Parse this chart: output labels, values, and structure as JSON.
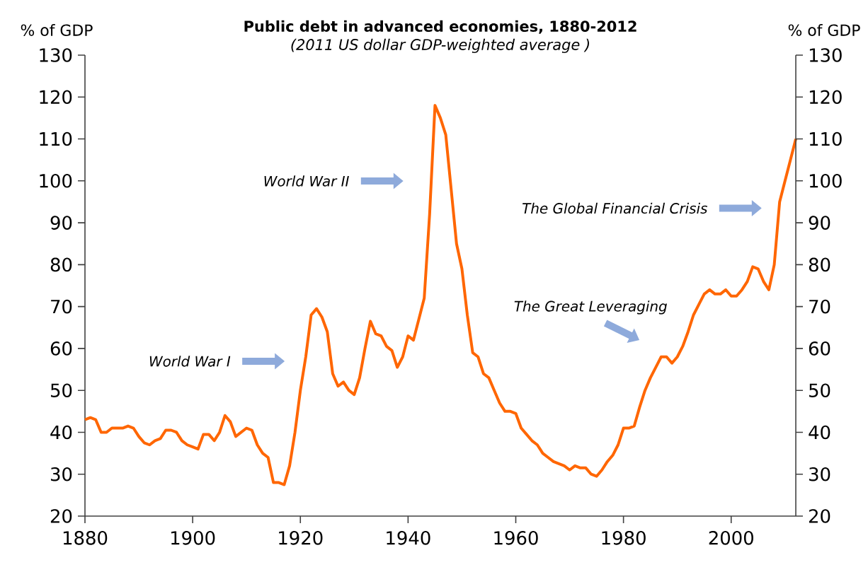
{
  "chart_data": {
    "type": "line",
    "title": "Public debt in advanced economies, 1880-2012",
    "subtitle": "(2011 US dollar GDP-weighted average )",
    "ylabel": "% of GDP",
    "y2label": "% of GDP",
    "x": [
      1880,
      1881,
      1882,
      1883,
      1884,
      1885,
      1886,
      1887,
      1888,
      1889,
      1890,
      1891,
      1892,
      1893,
      1894,
      1895,
      1896,
      1897,
      1898,
      1899,
      1900,
      1901,
      1902,
      1903,
      1904,
      1905,
      1906,
      1907,
      1908,
      1909,
      1910,
      1911,
      1912,
      1913,
      1914,
      1915,
      1916,
      1917,
      1918,
      1919,
      1920,
      1921,
      1922,
      1923,
      1924,
      1925,
      1926,
      1927,
      1928,
      1929,
      1930,
      1931,
      1932,
      1933,
      1934,
      1935,
      1936,
      1937,
      1938,
      1939,
      1940,
      1941,
      1942,
      1943,
      1944,
      1945,
      1946,
      1947,
      1948,
      1949,
      1950,
      1951,
      1952,
      1953,
      1954,
      1955,
      1956,
      1957,
      1958,
      1959,
      1960,
      1961,
      1962,
      1963,
      1964,
      1965,
      1966,
      1967,
      1968,
      1969,
      1970,
      1971,
      1972,
      1973,
      1974,
      1975,
      1976,
      1977,
      1978,
      1979,
      1980,
      1981,
      1982,
      1983,
      1984,
      1985,
      1986,
      1987,
      1988,
      1989,
      1990,
      1991,
      1992,
      1993,
      1994,
      1995,
      1996,
      1997,
      1998,
      1999,
      2000,
      2001,
      2002,
      2003,
      2004,
      2005,
      2006,
      2007,
      2008,
      2009,
      2010,
      2011,
      2012
    ],
    "series": [
      {
        "color": "#ff6600",
        "values": [
          43,
          43.5,
          43,
          40,
          40,
          41,
          41,
          41,
          41.5,
          41,
          39,
          37.5,
          37,
          38,
          38.5,
          40.5,
          40.5,
          40,
          38,
          37,
          36.5,
          36,
          39.5,
          39.5,
          38,
          40,
          44,
          42.5,
          39,
          40,
          41,
          40.5,
          37,
          35,
          34,
          28,
          28,
          27.5,
          32,
          40,
          50,
          58,
          68,
          69.5,
          67.5,
          64,
          54,
          51,
          52,
          50,
          49,
          53,
          60,
          66.5,
          63.5,
          63,
          60.5,
          59.5,
          55.5,
          58,
          63,
          62,
          67,
          72,
          92,
          118,
          115,
          111,
          98,
          85,
          79,
          68,
          59,
          58,
          54,
          53,
          50,
          47,
          45,
          45,
          44.5,
          41,
          39.5,
          38,
          37,
          35,
          34,
          33,
          32.5,
          32,
          31,
          32,
          31.5,
          31.5,
          30,
          29.5,
          31,
          33,
          34.5,
          37,
          41,
          41,
          41.5,
          46,
          50,
          53,
          55.5,
          58,
          58,
          56.5,
          58,
          60.5,
          64,
          68,
          70.5,
          73,
          74,
          73,
          73,
          74,
          72.5,
          72.5,
          74,
          76,
          79.5,
          79,
          76,
          74,
          80,
          95,
          100,
          105,
          110
        ]
      }
    ],
    "xlim": [
      1880,
      2012
    ],
    "xticks": [
      1880,
      1900,
      1920,
      1940,
      1960,
      1980,
      2000
    ],
    "ylim": [
      20,
      130
    ],
    "yticks": [
      20,
      30,
      40,
      50,
      60,
      70,
      80,
      90,
      100,
      110,
      120,
      130
    ],
    "y2lim": [
      20,
      130
    ],
    "y2ticks": [
      20,
      30,
      40,
      50,
      60,
      70,
      80,
      90,
      100,
      110,
      120,
      130
    ],
    "grid": false,
    "marker": "none",
    "line_style": "solid",
    "annotations": [
      "World War I",
      "World War II",
      "The Great Leveraging",
      "The Global Financial Crisis"
    ]
  }
}
